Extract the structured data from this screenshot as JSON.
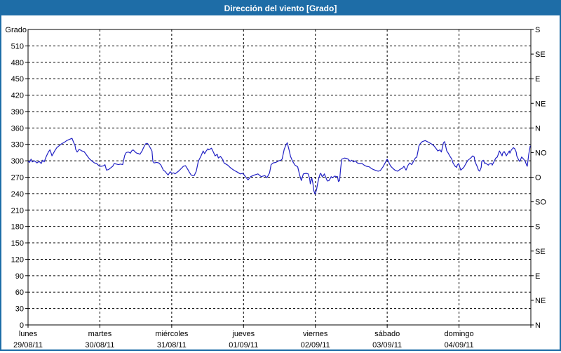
{
  "window": {
    "title": "Dirección del viento [Grado]"
  },
  "colors": {
    "titlebar_bg": "#1e6da7",
    "titlebar_text": "#ffffff",
    "window_border": "#1e6da7",
    "plot_bg": "#ffffff",
    "grid": "#000000",
    "axis": "#000000",
    "line": "#2121c4"
  },
  "chart_data": {
    "type": "line",
    "title": "Dirección del viento [Grado]",
    "ylabel": "Grado",
    "ylim": [
      0,
      540
    ],
    "ytick_step": 30,
    "ytick_labels": [
      "0",
      "30",
      "60",
      "90",
      "120",
      "150",
      "180",
      "210",
      "240",
      "270",
      "300",
      "330",
      "360",
      "390",
      "420",
      "450",
      "480",
      "510"
    ],
    "right_axis": {
      "step": 45,
      "labels_bottom_to_top": [
        "N",
        "NE",
        "E",
        "SE",
        "S",
        "SO",
        "O",
        "NO",
        "N",
        "NE",
        "E",
        "SE",
        "S"
      ]
    },
    "x_total_hours": 168,
    "x_days": [
      {
        "weekday": "lunes",
        "date": "29/08/11"
      },
      {
        "weekday": "martes",
        "date": "30/08/11"
      },
      {
        "weekday": "miércoles",
        "date": "31/08/11"
      },
      {
        "weekday": "jueves",
        "date": "01/09/11"
      },
      {
        "weekday": "viernes",
        "date": "02/09/11"
      },
      {
        "weekday": "sábado",
        "date": "03/09/11"
      },
      {
        "weekday": "domingo",
        "date": "04/09/11"
      }
    ],
    "grid": {
      "horizontal_dashed": true,
      "vertical_dashed_day_boundaries": true,
      "legend": "none"
    },
    "series": [
      {
        "name": "Dirección del viento",
        "points": [
          [
            0,
            299
          ],
          [
            0.5,
            297
          ],
          [
            1,
            303
          ],
          [
            1.4,
            298
          ],
          [
            2.1,
            300
          ],
          [
            3,
            296
          ],
          [
            3.7,
            299
          ],
          [
            4.4,
            295
          ],
          [
            4.9,
            301
          ],
          [
            5.4,
            298
          ],
          [
            6.1,
            308
          ],
          [
            6.8,
            316
          ],
          [
            7.3,
            320
          ],
          [
            7.7,
            314
          ],
          [
            8,
            309
          ],
          [
            8.9,
            318
          ],
          [
            9.6,
            324
          ],
          [
            10.5,
            328
          ],
          [
            11.2,
            331
          ],
          [
            12.2,
            334
          ],
          [
            12.9,
            337
          ],
          [
            13.8,
            339
          ],
          [
            14.7,
            341
          ],
          [
            15.2,
            334
          ],
          [
            15.7,
            328
          ],
          [
            15.9,
            321
          ],
          [
            16.4,
            316
          ],
          [
            17.1,
            321
          ],
          [
            18,
            318
          ],
          [
            18.7,
            317
          ],
          [
            19.9,
            308
          ],
          [
            20.6,
            303
          ],
          [
            21.5,
            299
          ],
          [
            22.2,
            296
          ],
          [
            22.9,
            295
          ],
          [
            23.9,
            290
          ],
          [
            24.6,
            290
          ],
          [
            25.3,
            291
          ],
          [
            25.7,
            293
          ],
          [
            26.2,
            283
          ],
          [
            26.9,
            284
          ],
          [
            27.6,
            287
          ],
          [
            28.3,
            290
          ],
          [
            28.8,
            295
          ],
          [
            29.5,
            294
          ],
          [
            30.2,
            293
          ],
          [
            30.9,
            294
          ],
          [
            31.6,
            293
          ],
          [
            31.9,
            300
          ],
          [
            32.3,
            310
          ],
          [
            32.8,
            315
          ],
          [
            33.5,
            316
          ],
          [
            34.2,
            314
          ],
          [
            34.6,
            318
          ],
          [
            35.1,
            320
          ],
          [
            35.8,
            316
          ],
          [
            36.3,
            314
          ],
          [
            37,
            313
          ],
          [
            37.4,
            312
          ],
          [
            38.1,
            318
          ],
          [
            38.6,
            324
          ],
          [
            39.3,
            331
          ],
          [
            39.8,
            332
          ],
          [
            40.2,
            330
          ],
          [
            40.7,
            325
          ],
          [
            41.4,
            318
          ],
          [
            41.7,
            299
          ],
          [
            42.1,
            296
          ],
          [
            43,
            297
          ],
          [
            43.7,
            296
          ],
          [
            44.4,
            292
          ],
          [
            45.2,
            283
          ],
          [
            45.9,
            280
          ],
          [
            46.3,
            277
          ],
          [
            46.8,
            274
          ],
          [
            47.5,
            280
          ],
          [
            48,
            277
          ],
          [
            48.7,
            278
          ],
          [
            49.1,
            276
          ],
          [
            49.8,
            279
          ],
          [
            50.5,
            282
          ],
          [
            51.2,
            286
          ],
          [
            51.9,
            290
          ],
          [
            52.6,
            291
          ],
          [
            53.4,
            284
          ],
          [
            53.8,
            280
          ],
          [
            54.5,
            274
          ],
          [
            55,
            273
          ],
          [
            55.5,
            273
          ],
          [
            56.2,
            281
          ],
          [
            56.9,
            299
          ],
          [
            57.8,
            309
          ],
          [
            58.5,
            318
          ],
          [
            59,
            313
          ],
          [
            59.4,
            317
          ],
          [
            60.1,
            322
          ],
          [
            60.4,
            320
          ],
          [
            61.3,
            323
          ],
          [
            62,
            315
          ],
          [
            62.5,
            309
          ],
          [
            63.2,
            312
          ],
          [
            63.6,
            305
          ],
          [
            64.3,
            308
          ],
          [
            65.1,
            302
          ],
          [
            65.5,
            296
          ],
          [
            66.7,
            292
          ],
          [
            67.9,
            286
          ],
          [
            69,
            282
          ],
          [
            69.7,
            280
          ],
          [
            70.9,
            276
          ],
          [
            71.8,
            277
          ],
          [
            72.5,
            272
          ],
          [
            73.5,
            265
          ],
          [
            74.4,
            271
          ],
          [
            75.6,
            274
          ],
          [
            76.8,
            276
          ],
          [
            77.9,
            271
          ],
          [
            79.1,
            273
          ],
          [
            79.8,
            269
          ],
          [
            80.7,
            278
          ],
          [
            81.2,
            293
          ],
          [
            81.9,
            296
          ],
          [
            82.8,
            297
          ],
          [
            83.8,
            300
          ],
          [
            84.5,
            301
          ],
          [
            84.9,
            303
          ],
          [
            85.6,
            321
          ],
          [
            86.1,
            328
          ],
          [
            86.6,
            333
          ],
          [
            87.3,
            318
          ],
          [
            87.7,
            308
          ],
          [
            88.4,
            299
          ],
          [
            89.2,
            292
          ],
          [
            90.1,
            289
          ],
          [
            90.8,
            273
          ],
          [
            91.3,
            264
          ],
          [
            92,
            276
          ],
          [
            92.9,
            277
          ],
          [
            93.6,
            276
          ],
          [
            94.1,
            267
          ],
          [
            94.3,
            258
          ],
          [
            94.8,
            269
          ],
          [
            95.2,
            258
          ],
          [
            95.5,
            245
          ],
          [
            95.9,
            239
          ],
          [
            96.4,
            247
          ],
          [
            96.6,
            254
          ],
          [
            97.1,
            267
          ],
          [
            97.6,
            276
          ],
          [
            97.8,
            277
          ],
          [
            98.3,
            271
          ],
          [
            98.7,
            273
          ],
          [
            99,
            276
          ],
          [
            99.4,
            271
          ],
          [
            99.9,
            264
          ],
          [
            100.1,
            263
          ],
          [
            100.6,
            264
          ],
          [
            101.1,
            269
          ],
          [
            101.3,
            271
          ],
          [
            101.8,
            269
          ],
          [
            102.2,
            271
          ],
          [
            102.5,
            272
          ],
          [
            103,
            271
          ],
          [
            103.4,
            271
          ],
          [
            103.7,
            262
          ],
          [
            104.1,
            264
          ],
          [
            104.4,
            284
          ],
          [
            104.8,
            303
          ],
          [
            105.3,
            304
          ],
          [
            105.8,
            305
          ],
          [
            106.5,
            304
          ],
          [
            107,
            303
          ],
          [
            107.6,
            299
          ],
          [
            108.1,
            301
          ],
          [
            108.8,
            298
          ],
          [
            109.3,
            300
          ],
          [
            110,
            296
          ],
          [
            110.7,
            295
          ],
          [
            111.6,
            295
          ],
          [
            112.3,
            292
          ],
          [
            113,
            290
          ],
          [
            114,
            289
          ],
          [
            114.7,
            286
          ],
          [
            115.4,
            284
          ],
          [
            116.3,
            282
          ],
          [
            117,
            281
          ],
          [
            117.7,
            282
          ],
          [
            118.6,
            289
          ],
          [
            119.3,
            296
          ],
          [
            120,
            303
          ],
          [
            120.5,
            298
          ],
          [
            120.7,
            295
          ],
          [
            121.2,
            290
          ],
          [
            121.9,
            286
          ],
          [
            122.8,
            282
          ],
          [
            123.5,
            281
          ],
          [
            124.2,
            284
          ],
          [
            125.2,
            287
          ],
          [
            125.6,
            290
          ],
          [
            126.3,
            283
          ],
          [
            127,
            292
          ],
          [
            127.5,
            296
          ],
          [
            128.2,
            293
          ],
          [
            129.2,
            303
          ],
          [
            129.4,
            305
          ],
          [
            129.9,
            307
          ],
          [
            130.3,
            318
          ],
          [
            130.6,
            327
          ],
          [
            131,
            331
          ],
          [
            131.7,
            335
          ],
          [
            132.7,
            337
          ],
          [
            133.4,
            335
          ],
          [
            134.1,
            333
          ],
          [
            135,
            330
          ],
          [
            135.7,
            327
          ],
          [
            136.4,
            322
          ],
          [
            136.9,
            318
          ],
          [
            137.6,
            320
          ],
          [
            138.1,
            316
          ],
          [
            138.8,
            333
          ],
          [
            139.2,
            335
          ],
          [
            139.9,
            318
          ],
          [
            140.4,
            314
          ],
          [
            140.9,
            309
          ],
          [
            141.6,
            303
          ],
          [
            142,
            296
          ],
          [
            142.7,
            290
          ],
          [
            143.2,
            288
          ],
          [
            143.4,
            292
          ],
          [
            143.9,
            295
          ],
          [
            144.4,
            286
          ],
          [
            144.6,
            283
          ],
          [
            145.6,
            288
          ],
          [
            146.3,
            295
          ],
          [
            147,
            301
          ],
          [
            147.9,
            305
          ],
          [
            148.6,
            309
          ],
          [
            149.1,
            307
          ],
          [
            149.3,
            299
          ],
          [
            150.2,
            288
          ],
          [
            150.5,
            283
          ],
          [
            150.9,
            281
          ],
          [
            151.4,
            288
          ],
          [
            151.6,
            299
          ],
          [
            152.1,
            301
          ],
          [
            152.6,
            295
          ],
          [
            152.8,
            296
          ],
          [
            153.8,
            292
          ],
          [
            154,
            294
          ],
          [
            154.9,
            295
          ],
          [
            155.1,
            292
          ],
          [
            156.1,
            303
          ],
          [
            156.3,
            305
          ],
          [
            156.8,
            307
          ],
          [
            157.5,
            318
          ],
          [
            157.9,
            314
          ],
          [
            158.4,
            309
          ],
          [
            158.6,
            314
          ],
          [
            159.1,
            317
          ],
          [
            159.6,
            312
          ],
          [
            159.8,
            309
          ],
          [
            160.8,
            318
          ],
          [
            161,
            314
          ],
          [
            161.5,
            320
          ],
          [
            162.2,
            324
          ],
          [
            162.6,
            322
          ],
          [
            163.1,
            316
          ],
          [
            163.3,
            309
          ],
          [
            163.8,
            303
          ],
          [
            164.2,
            299
          ],
          [
            164.5,
            301
          ],
          [
            164.9,
            307
          ],
          [
            165.6,
            303
          ],
          [
            166.1,
            299
          ],
          [
            166.6,
            292
          ],
          [
            166.8,
            290
          ],
          [
            167.3,
            312
          ],
          [
            167.8,
            327
          ]
        ]
      }
    ]
  }
}
